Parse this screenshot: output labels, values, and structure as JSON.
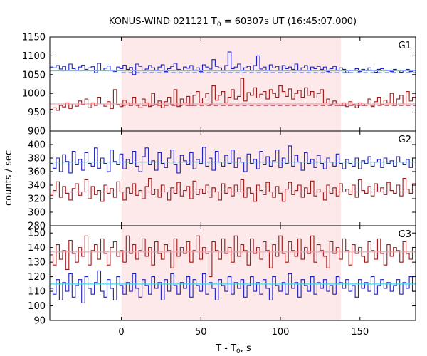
{
  "chart_data": {
    "type": "line",
    "title_main": "KONUS-WIND 021121 T",
    "title_sub": "0",
    "title_rest": " = 60307s UT (16:45:07.000)",
    "xlabel_main": "T - T",
    "xlabel_sub": "0",
    "xlabel_rest": ", s",
    "ylabel": "counts / sec",
    "xlim": [
      -45,
      185
    ],
    "xticks": [
      0,
      50,
      100,
      150
    ],
    "xtick_labels": [
      "0",
      "50",
      "100",
      "150"
    ],
    "shaded_interval": [
      0,
      138
    ],
    "colors": {
      "shade": "#fde8ea",
      "blue": "#2020c0",
      "red": "#a01818",
      "cyan_fit": "#40d8e8",
      "pink_fit": "#f0a0b8"
    },
    "panels": [
      {
        "label": "G1",
        "ylim": [
          900,
          1150
        ],
        "yticks": [
          900,
          950,
          1000,
          1050,
          1100,
          1150
        ],
        "ytick_labels": [
          "900",
          "950",
          "1000",
          "1050",
          "1100",
          "1150"
        ],
        "series": [
          {
            "color": "blue",
            "fit": 1060,
            "fit_color": "cyan_fit",
            "bg_dashed": 1055,
            "values": [
              1070,
              1068,
              1074,
              1065,
              1072,
              1060,
              1078,
              1066,
              1062,
              1070,
              1075,
              1064,
              1068,
              1071,
              1055,
              1080,
              1060,
              1067,
              1073,
              1062,
              1058,
              1070,
              1066,
              1075,
              1064,
              1069,
              1050,
              1078,
              1072,
              1060,
              1065,
              1074,
              1068,
              1062,
              1070,
              1076,
              1058,
              1066,
              1072,
              1080,
              1064,
              1060,
              1070,
              1067,
              1074,
              1062,
              1068,
              1058,
              1076,
              1070,
              1065,
              1090,
              1072,
              1068,
              1060,
              1074,
              1110,
              1066,
              1070,
              1078,
              1062,
              1068,
              1072,
              1060,
              1074,
              1100,
              1065,
              1070,
              1062,
              1076,
              1068,
              1072,
              1060,
              1074,
              1066,
              1070,
              1064,
              1078,
              1060,
              1068,
              1074,
              1062,
              1070,
              1066,
              1072,
              1064,
              1070,
              1058,
              1066,
              1072,
              1060,
              1068,
              1064,
              1055,
              1062,
              1060,
              1066,
              1058,
              1064,
              1060,
              1068,
              1062,
              1056,
              1064,
              1066,
              1060,
              1062,
              1058,
              1064,
              1060,
              1056,
              1062,
              1064,
              1058,
              1062
            ]
          },
          {
            "color": "red",
            "fit": 972,
            "fit_color": "pink_fit",
            "bg_dashed": 968,
            "values": [
              958,
              962,
              955,
              968,
              964,
              975,
              960,
              972,
              966,
              980,
              970,
              985,
              962,
              975,
              968,
              990,
              972,
              966,
              978,
              960,
              1010,
              970,
              965,
              982,
              975,
              968,
              990,
              972,
              962,
              985,
              975,
              965,
              1000,
              970,
              980,
              962,
              978,
              990,
              970,
              1010,
              965,
              985,
              975,
              992,
              968,
              995,
              1005,
              975,
              988,
              1000,
              970,
              1020,
              982,
              995,
              1005,
              975,
              990,
              1010,
              985,
              992,
              1040,
              980,
              1002,
              995,
              1015,
              988,
              998,
              1005,
              985,
              1010,
              1000,
              990,
              1020,
              1005,
              992,
              1012,
              985,
              1000,
              1008,
              990,
              1015,
              995,
              1005,
              988,
              1000,
              1010,
              975,
              985,
              970,
              980,
              972,
              968,
              975,
              965,
              978,
              970,
              962,
              975,
              968,
              972,
              985,
              965,
              978,
              990,
              970,
              982,
              975,
              1000,
              968,
              985,
              995,
              972,
              1005,
              980,
              990
            ]
          }
        ]
      },
      {
        "label": "G2",
        "ylim": [
          280,
          420
        ],
        "yticks": [
          280,
          300,
          320,
          340,
          360,
          380,
          400
        ],
        "ytick_labels": [
          "280",
          "300",
          "320",
          "340",
          "360",
          "380",
          "400"
        ],
        "series": [
          {
            "color": "blue",
            "fit": 374,
            "fit_color": "cyan_fit",
            "values": [
              372,
              365,
              380,
              360,
              385,
              375,
              358,
              390,
              370,
              378,
              362,
              388,
              372,
              368,
              395,
              365,
              380,
              372,
              360,
              392,
              375,
              370,
              386,
              364,
              378,
              372,
              390,
              368,
              360,
              382,
              395,
              370,
              376,
              362,
              388,
              372,
              366,
              380,
              392,
              370,
              358,
              384,
              376,
              370,
              388,
              364,
              378,
              372,
              396,
              368,
              380,
              362,
              390,
              374,
              368,
              384,
              372,
              392,
              366,
              380,
              374,
              360,
              386,
              372,
              378,
              364,
              390,
              370,
              382,
              368,
              376,
              392,
              366,
              380,
              372,
              398,
              368,
              384,
              374,
              362,
              388,
              372,
              378,
              366,
              384,
              372,
              364,
              380,
              374,
              368,
              386,
              372,
              364,
              378,
              372,
              368,
              380,
              364,
              376,
              372,
              382,
              368,
              374,
              378,
              366,
              380,
              372,
              376,
              368,
              382,
              374,
              370,
              378,
              366,
              380
            ]
          },
          {
            "color": "red",
            "fit": 330,
            "fit_color": "pink_fit",
            "values": [
              325,
              332,
              345,
              322,
              338,
              328,
              318,
              335,
              342,
              325,
              330,
              348,
              320,
              338,
              326,
              332,
              316,
              340,
              328,
              335,
              322,
              345,
              330,
              318,
              336,
              328,
              342,
              325,
              332,
              320,
              338,
              350,
              326,
              334,
              322,
              340,
              330,
              318,
              336,
              328,
              344,
              324,
              332,
              338,
              320,
              346,
              326,
              334,
              328,
              340,
              322,
              336,
              330,
              318,
              342,
              328,
              336,
              324,
              340,
              330,
              348,
              322,
              336,
              328,
              316,
              340,
              332,
              326,
              344,
              330,
              322,
              338,
              328,
              316,
              334,
              344,
              326,
              332,
              340,
              322,
              336,
              328,
              346,
              324,
              334,
              330,
              318,
              340,
              328,
              336,
              324,
              342,
              330,
              334,
              326,
              340,
              322,
              348,
              332,
              328,
              338,
              324,
              342,
              330,
              336,
              326,
              344,
              332,
              328,
              340,
              324,
              350,
              334,
              328,
              342
            ]
          }
        ]
      },
      {
        "label": "G3",
        "ylim": [
          90,
          155
        ],
        "yticks": [
          90,
          100,
          110,
          120,
          130,
          140,
          150
        ],
        "ytick_labels": [
          "90",
          "100",
          "110",
          "120",
          "130",
          "140",
          "150"
        ],
        "series": [
          {
            "color": "blue",
            "fit": 115,
            "fit_color": "cyan_fit",
            "values": [
              112,
              108,
              118,
              104,
              116,
              110,
              122,
              106,
              114,
              118,
              102,
              120,
              112,
              108,
              116,
              124,
              110,
              106,
              118,
              112,
              104,
              120,
              114,
              108,
              116,
              110,
              122,
              112,
              106,
              118,
              114,
              108,
              120,
              112,
              116,
              104,
              118,
              110,
              122,
              114,
              108,
              116,
              112,
              120,
              106,
              118,
              114,
              110,
              122,
              108,
              116,
              112,
              104,
              118,
              114,
              110,
              120,
              108,
              116,
              112,
              118,
              106,
              114,
              120,
              110,
              116,
              108,
              118,
              112,
              104,
              120,
              114,
              110,
              116,
              108,
              122,
              112,
              116,
              106,
              118,
              114,
              110,
              120,
              108,
              116,
              112,
              118,
              110,
              114,
              108,
              120,
              116,
              112,
              118,
              110,
              114,
              106,
              118,
              112,
              116,
              110,
              120,
              108,
              114,
              118,
              112,
              116,
              110,
              114,
              118,
              108,
              116,
              112,
              120,
              110
            ]
          },
          {
            "color": "red",
            "fit": 137,
            "fit_color": "pink_fit",
            "values": [
              135,
              128,
              142,
              132,
              138,
              125,
              145,
              136,
              130,
              140,
              134,
              148,
              128,
              138,
              142,
              132,
              146,
              136,
              128,
              140,
              144,
              134,
              138,
              130,
              148,
              136,
              142,
              132,
              138,
              146,
              134,
              140,
              128,
              144,
              136,
              132,
              142,
              138,
              126,
              146,
              134,
              140,
              136,
              144,
              130,
              138,
              148,
              132,
              140,
              136,
              120,
              144,
              138,
              132,
              146,
              136,
              140,
              130,
              148,
              134,
              142,
              138,
              128,
              146,
              136,
              140,
              132,
              144,
              138,
              126,
              142,
              134,
              148,
              136,
              130,
              144,
              138,
              134,
              146,
              132,
              140,
              136,
              148,
              130,
              142,
              138,
              134,
              126,
              144,
              136,
              140,
              132,
              146,
              138,
              128,
              142,
              136,
              140,
              134,
              130,
              144,
              138,
              132,
              146,
              136,
              128,
              142,
              134,
              140,
              138,
              130,
              144,
              136,
              132,
              140
            ]
          }
        ]
      }
    ]
  }
}
